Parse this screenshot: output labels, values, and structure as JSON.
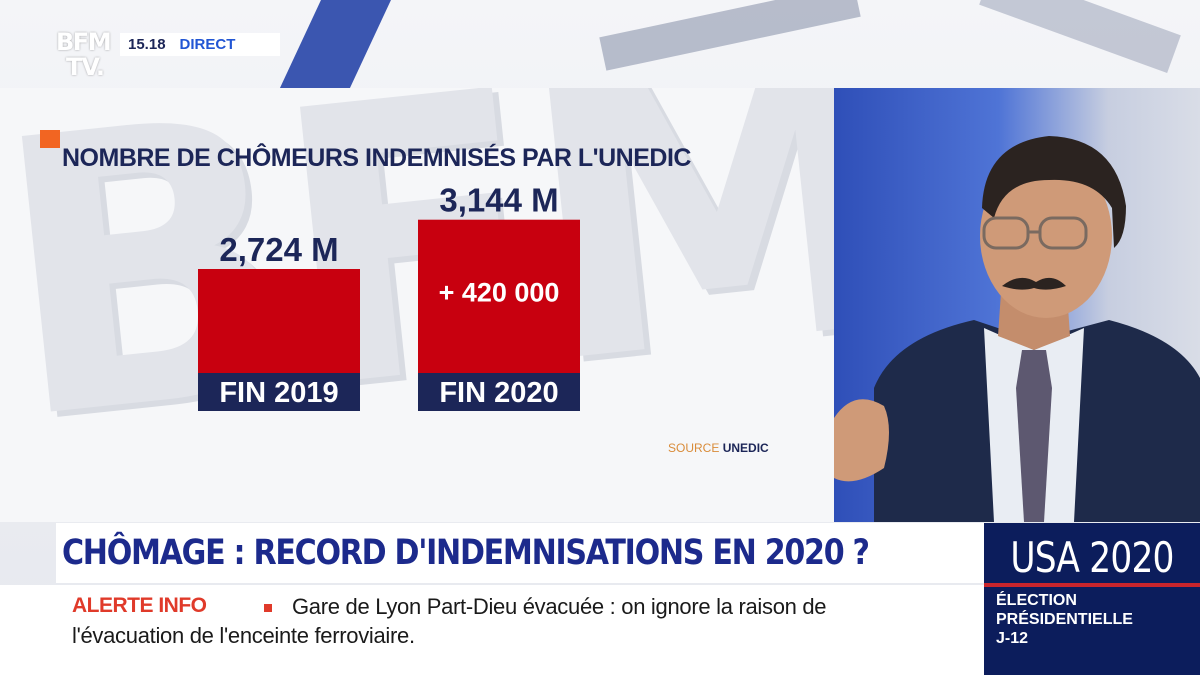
{
  "channel": {
    "logo_line1": "BFM",
    "logo_line2": "TV.",
    "time": "15.18",
    "live_label": "DIRECT"
  },
  "graphic": {
    "watermark": "BFM"
  },
  "chart_data": {
    "type": "bar",
    "title": "NOMBRE DE CHÔMEURS INDEMNISÉS PAR L'UNEDIC",
    "categories": [
      "FIN 2019",
      "FIN 2020"
    ],
    "values": [
      2.724,
      3.144
    ],
    "value_labels": [
      "2,724 M",
      "3,144 M"
    ],
    "annotations": [
      "",
      "+ 420 000"
    ],
    "unit": "M",
    "bar_color": "#c8000f",
    "label_bg_color": "#1c2658",
    "source_prefix": "SOURCE",
    "source_name": "UNEDIC"
  },
  "headline": "CHÔMAGE : RECORD D'INDEMNISATIONS EN 2020 ?",
  "ticker": {
    "label": "ALERTE INFO",
    "line1": "Gare de Lyon Part-Dieu évacuée : on ignore la raison de",
    "line2": "l'évacuation de l'enceinte ferroviaire."
  },
  "side_box": {
    "title": "USA 2020",
    "line1": "ÉLECTION",
    "line2": "PRÉSIDENTIELLE",
    "line3": "J-12"
  },
  "colors": {
    "brand_navy": "#1c2658",
    "headline_blue": "#1c2a8c",
    "alert_red": "#e03a2a",
    "accent_orange": "#f26522"
  }
}
